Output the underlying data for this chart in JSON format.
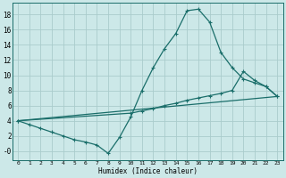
{
  "xlabel": "Humidex (Indice chaleur)",
  "bg_color": "#cce8e8",
  "grid_color": "#aacccc",
  "line_color": "#1a6e6a",
  "xlim": [
    -0.5,
    23.5
  ],
  "ylim": [
    -1.2,
    19.5
  ],
  "xticks": [
    0,
    1,
    2,
    3,
    4,
    5,
    6,
    7,
    8,
    9,
    10,
    11,
    12,
    13,
    14,
    15,
    16,
    17,
    18,
    19,
    20,
    21,
    22,
    23
  ],
  "yticks": [
    0,
    2,
    4,
    6,
    8,
    10,
    12,
    14,
    16,
    18
  ],
  "ytick_labels": [
    "-0",
    "2",
    "4",
    "6",
    "8",
    "10",
    "12",
    "14",
    "16",
    "18"
  ],
  "xtick_labels": [
    "0",
    "1",
    "2",
    "3",
    "4",
    "5",
    "6",
    "7",
    "8",
    "9",
    "1011",
    "1213",
    "1415",
    "1617",
    "1819",
    "2021",
    "2223"
  ],
  "xtick_positions": [
    0,
    1,
    2,
    3,
    4,
    5,
    6,
    7,
    8,
    9,
    10.5,
    12.5,
    14.5,
    16.5,
    18.5,
    20.5,
    22.5
  ],
  "line1_x": [
    0,
    1,
    2,
    3,
    4,
    5,
    6,
    7,
    8,
    9,
    10,
    11,
    12,
    13,
    14,
    15,
    16,
    17,
    18,
    19,
    20,
    21,
    22,
    23
  ],
  "line1_y": [
    4.0,
    3.5,
    3.0,
    2.5,
    2.0,
    1.5,
    1.2,
    0.8,
    -0.3,
    1.8,
    4.5,
    8.0,
    11.0,
    13.5,
    15.5,
    18.5,
    18.7,
    17.0,
    13.0,
    11.0,
    9.5,
    9.0,
    8.5,
    7.2
  ],
  "line2_x": [
    0,
    23
  ],
  "line2_y": [
    4.0,
    7.2
  ],
  "line3_x": [
    0,
    10,
    11,
    12,
    13,
    14,
    15,
    16,
    17,
    18,
    19,
    20,
    21,
    22,
    23
  ],
  "line3_y": [
    4.0,
    5.0,
    5.3,
    5.6,
    6.0,
    6.3,
    6.7,
    7.0,
    7.3,
    7.6,
    8.0,
    10.5,
    9.3,
    8.5,
    7.2
  ]
}
